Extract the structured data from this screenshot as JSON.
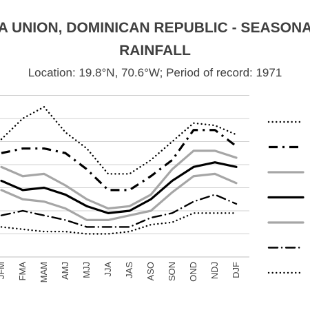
{
  "chart_data": {
    "type": "line",
    "title_line1": "LA UNION, DOMINICAN REPUBLIC - SEASONAL",
    "title_line2": "RAINFALL",
    "subtitle": "Location: 19.8°N, 70.6°W; Period of record: 1971",
    "categories": [
      "JFM",
      "FMA",
      "MAM",
      "AMJ",
      "MJJ",
      "JJA",
      "JAS",
      "ASO",
      "SON",
      "OND",
      "NDJ",
      "DJF"
    ],
    "ylim": [
      0,
      7
    ],
    "grid": true,
    "legend_position": "right",
    "series": [
      {
        "style": "dotted",
        "weight": "thin",
        "color": "#000000",
        "values": [
          5.1,
          6.0,
          6.5,
          5.4,
          4.7,
          3.6,
          3.6,
          4.2,
          5.0,
          5.8,
          5.7,
          5.3
        ]
      },
      {
        "style": "dashdot",
        "weight": "thick",
        "color": "#000000",
        "values": [
          4.5,
          4.7,
          4.7,
          4.5,
          3.8,
          2.9,
          2.9,
          3.5,
          4.2,
          5.5,
          5.5,
          4.8
        ]
      },
      {
        "style": "solid",
        "weight": "thick",
        "color": "#a6a6a6",
        "values": [
          3.9,
          3.5,
          3.6,
          3.1,
          2.5,
          2.1,
          2.2,
          2.7,
          3.8,
          4.6,
          4.6,
          4.3
        ]
      },
      {
        "style": "solid",
        "weight": "thick",
        "color": "#000000",
        "values": [
          3.3,
          2.9,
          3.0,
          2.7,
          2.2,
          1.9,
          2.0,
          2.5,
          3.3,
          3.9,
          4.1,
          3.9
        ]
      },
      {
        "style": "solid",
        "weight": "thick",
        "color": "#a6a6a6",
        "values": [
          2.9,
          2.5,
          2.4,
          2.1,
          1.6,
          1.6,
          1.8,
          2.0,
          2.8,
          3.5,
          3.6,
          3.2
        ]
      },
      {
        "style": "dashdot",
        "weight": "thin",
        "color": "#000000",
        "values": [
          1.8,
          2.0,
          1.8,
          1.6,
          1.3,
          1.3,
          1.3,
          1.7,
          1.9,
          2.4,
          2.7,
          2.3
        ]
      },
      {
        "style": "dotted",
        "weight": "thin",
        "color": "#000000",
        "values": [
          1.3,
          1.2,
          1.1,
          1.1,
          1.0,
          1.0,
          1.1,
          1.4,
          1.5,
          1.9,
          1.9,
          1.9
        ]
      }
    ]
  }
}
